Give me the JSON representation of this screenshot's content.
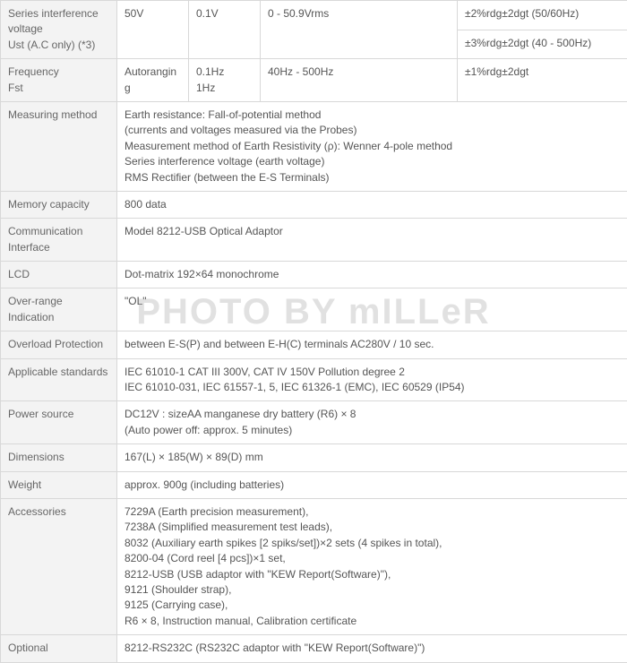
{
  "watermark": "PHOTO BY mILLeR",
  "colors": {
    "border": "#d8d8d8",
    "label_bg": "#f3f3f3",
    "text": "#555555",
    "watermark": "rgba(170,170,170,0.35)"
  },
  "col_widths": [
    "130",
    "80",
    "80",
    "110",
    "110",
    "190"
  ],
  "rows": {
    "siv": {
      "label": "Series interference voltage\nUst (A.C only) (*3)",
      "c1": "50V",
      "c2": "0.1V",
      "c3": "0 - 50.9Vrms",
      "c4a": "±2%rdg±2dgt (50/60Hz)",
      "c4b": "±3%rdg±2dgt (40 - 500Hz)"
    },
    "freq": {
      "label": "Frequency\nFst",
      "c1": "Autoranging",
      "c2": "0.1Hz\n1Hz",
      "c3": "40Hz - 500Hz",
      "c4": "±1%rdg±2dgt"
    },
    "measuring_method": {
      "label": "Measuring method",
      "value": "Earth resistance: Fall-of-potential method\n(currents and voltages measured via the Probes)\nMeasurement method of Earth Resistivity (ρ): Wenner 4-pole method\nSeries interference voltage (earth voltage)\nRMS Rectifier (between the E-S Terminals)"
    },
    "memory": {
      "label": "Memory capacity",
      "value": "800 data"
    },
    "comm": {
      "label": "Communication Interface",
      "value": "Model 8212-USB Optical Adaptor"
    },
    "lcd": {
      "label": "LCD",
      "value": "Dot-matrix 192×64 monochrome"
    },
    "overrange": {
      "label": "Over-range Indication",
      "value": "\"OL\""
    },
    "overload": {
      "label": "Overload Protection",
      "value": "between E-S(P) and between E-H(C) terminals AC280V / 10 sec."
    },
    "standards": {
      "label": "Applicable standards",
      "value": "IEC 61010-1 CAT III 300V, CAT IV 150V Pollution degree 2\nIEC 61010-031, IEC 61557-1, 5, IEC 61326-1 (EMC), IEC 60529 (IP54)"
    },
    "power": {
      "label": "Power source",
      "value": "DC12V : sizeAA manganese dry battery (R6) × 8\n(Auto power off: approx. 5 minutes)"
    },
    "dimensions": {
      "label": "Dimensions",
      "value": "167(L) × 185(W) × 89(D) mm"
    },
    "weight": {
      "label": "Weight",
      "value": "approx. 900g (including batteries)"
    },
    "accessories": {
      "label": "Accessories",
      "value": "7229A (Earth precision measurement),\n7238A (Simplified measurement test leads),\n8032 (Auxiliary earth spikes [2 spiks/set])×2 sets (4 spikes in total),\n8200-04 (Cord reel [4 pcs])×1 set,\n8212-USB (USB adaptor with \"KEW Report(Software)\"),\n9121 (Shoulder strap),\n9125 (Carrying case),\nR6 × 8, Instruction manual, Calibration certificate"
    },
    "optional": {
      "label": "Optional",
      "value": "8212-RS232C (RS232C adaptor with \"KEW Report(Software)\")"
    }
  }
}
